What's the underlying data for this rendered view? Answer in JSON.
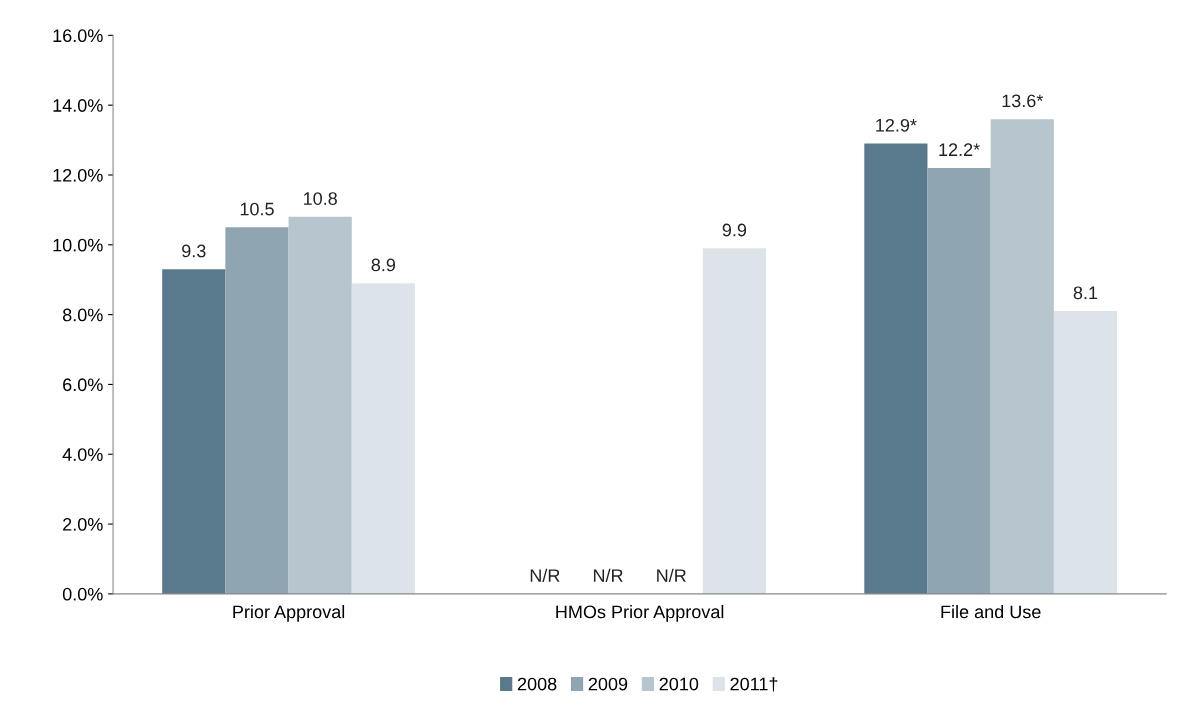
{
  "chart_data": {
    "type": "bar",
    "categories": [
      "Prior Approval",
      "HMOs Prior Approval",
      "File and Use"
    ],
    "series": [
      {
        "name": "2008",
        "color": "#587a8c",
        "values": [
          9.3,
          null,
          12.9
        ],
        "value_labels": [
          "9.3",
          "N/R",
          "12.9*"
        ]
      },
      {
        "name": "2009",
        "color": "#8fa5b1",
        "values": [
          10.5,
          null,
          12.2
        ],
        "value_labels": [
          "10.5",
          "N/R",
          "12.2*"
        ]
      },
      {
        "name": "2010",
        "color": "#b7c6ce",
        "values": [
          10.8,
          null,
          13.6
        ],
        "value_labels": [
          "10.8",
          "N/R",
          "13.6*"
        ]
      },
      {
        "name": "2011†",
        "color": "#dde4e9",
        "values": [
          8.9,
          9.9,
          8.1
        ],
        "value_labels": [
          "8.9",
          "9.9",
          "8.1"
        ]
      }
    ],
    "ylim": [
      0,
      16
    ],
    "yticks": [
      {
        "value": 0,
        "label": "0.0%"
      },
      {
        "value": 2,
        "label": "2.0%"
      },
      {
        "value": 4,
        "label": "4.0%"
      },
      {
        "value": 6,
        "label": "6.0%"
      },
      {
        "value": 8,
        "label": "8.0%"
      },
      {
        "value": 10,
        "label": "10.0%"
      },
      {
        "value": 12,
        "label": "12.0%"
      },
      {
        "value": 14,
        "label": "14.0%"
      },
      {
        "value": 16,
        "label": "16.0%"
      }
    ],
    "grid": false,
    "legend": "bottom"
  }
}
